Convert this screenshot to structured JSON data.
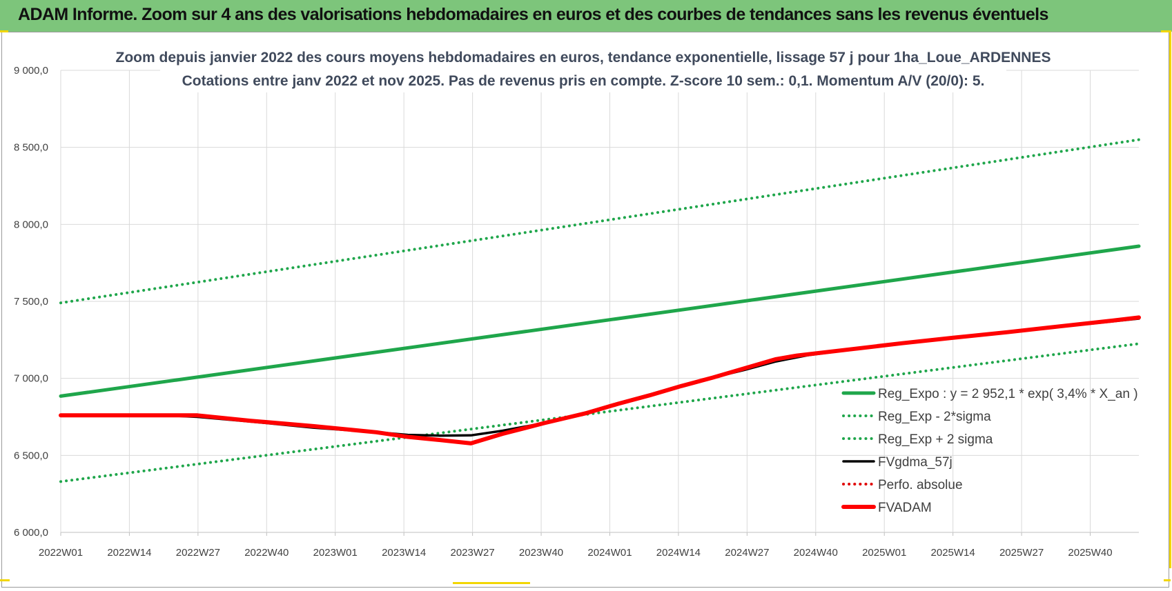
{
  "banner": {
    "title": "ADAM Informe. Zoom sur 4 ans des valorisations hebdomadaires en euros et des courbes de tendances sans les revenus éventuels"
  },
  "chart_data": {
    "type": "line",
    "title_lines": [
      "Zoom depuis janvier 2022 des cours moyens hebdomadaires en euros, tendance exponentielle, lissage 57 j pour 1ha_Loue_ARDENNES",
      "Cotations entre janv 2022 et nov 2025. Pas de revenus pris en compte. Z-score 10 sem.: 0,1. Momentum A/V (20/0): 5."
    ],
    "y_ticks": [
      "6 000,0",
      "6 500,0",
      "7 000,0",
      "7 500,0",
      "8 000,0",
      "8 500,0",
      "9 000,0"
    ],
    "x_ticks": [
      "2022W01",
      "2022W14",
      "2022W27",
      "2022W40",
      "2023W01",
      "2023W14",
      "2023W27",
      "2023W40",
      "2024W01",
      "2024W14",
      "2024W27",
      "2024W40",
      "2025W01",
      "2025W14",
      "2025W27",
      "2025W40"
    ],
    "ylim": [
      6000,
      9000
    ],
    "x_range_weeks": [
      0,
      205
    ],
    "grid": true,
    "legend_position": "lower-right",
    "series": [
      {
        "name": "Reg_Expo : y = 2 952,1 * exp( 3,4% *  X_an )",
        "color": "#1fa64b",
        "style": "solid-thick",
        "points": [
          [
            0,
            6885
          ],
          [
            205,
            7858
          ]
        ]
      },
      {
        "name": "Reg_Exp - 2*sigma",
        "color": "#1fa64b",
        "style": "dotted",
        "points": [
          [
            0,
            6330
          ],
          [
            205,
            7225
          ]
        ]
      },
      {
        "name": "Reg_Exp + 2 sigma",
        "color": "#1fa64b",
        "style": "dotted",
        "points": [
          [
            0,
            7490
          ],
          [
            205,
            8550
          ]
        ]
      },
      {
        "name": "FVgdma_57j",
        "color": "#000000",
        "style": "solid",
        "points": [
          [
            0,
            6760
          ],
          [
            20,
            6760
          ],
          [
            26,
            6750
          ],
          [
            36,
            6720
          ],
          [
            48,
            6680
          ],
          [
            60,
            6650
          ],
          [
            66,
            6633
          ],
          [
            72,
            6628
          ],
          [
            78,
            6630
          ],
          [
            84,
            6660
          ],
          [
            92,
            6710
          ],
          [
            100,
            6780
          ],
          [
            106,
            6840
          ],
          [
            112,
            6895
          ],
          [
            118,
            6955
          ],
          [
            124,
            7005
          ],
          [
            130,
            7055
          ],
          [
            136,
            7110
          ],
          [
            142,
            7150
          ],
          [
            150,
            7185
          ],
          [
            160,
            7225
          ],
          [
            170,
            7262
          ],
          [
            180,
            7298
          ],
          [
            190,
            7335
          ],
          [
            200,
            7370
          ],
          [
            205,
            7388
          ]
        ]
      },
      {
        "name": "Perfo. absolue",
        "color": "#e00000",
        "style": "dotted",
        "points": []
      },
      {
        "name": "FVADAM",
        "color": "#ff0000",
        "style": "solid-thick",
        "points": [
          [
            0,
            6760
          ],
          [
            26,
            6760
          ],
          [
            36,
            6725
          ],
          [
            48,
            6690
          ],
          [
            60,
            6650
          ],
          [
            66,
            6620
          ],
          [
            72,
            6600
          ],
          [
            78,
            6578
          ],
          [
            84,
            6640
          ],
          [
            92,
            6710
          ],
          [
            100,
            6775
          ],
          [
            106,
            6835
          ],
          [
            112,
            6890
          ],
          [
            118,
            6950
          ],
          [
            124,
            7005
          ],
          [
            130,
            7065
          ],
          [
            136,
            7125
          ],
          [
            140,
            7148
          ],
          [
            150,
            7188
          ],
          [
            160,
            7228
          ],
          [
            170,
            7265
          ],
          [
            180,
            7300
          ],
          [
            190,
            7338
          ],
          [
            200,
            7375
          ],
          [
            205,
            7395
          ]
        ]
      }
    ]
  }
}
